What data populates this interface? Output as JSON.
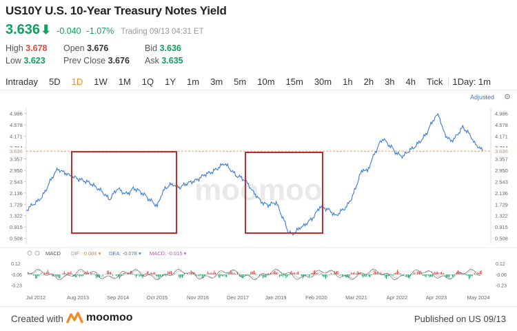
{
  "header": {
    "title": "US10Y U.S. 10-Year Treasury Notes Yield",
    "price": "3.636",
    "change": "-0.040",
    "change_pct": "-1.07%",
    "status": "Trading",
    "timestamp": "09/13 04:31 ET"
  },
  "stats": {
    "high_label": "High",
    "high": "3.678",
    "low_label": "Low",
    "low": "3.623",
    "open_label": "Open",
    "open": "3.676",
    "prev_close_label": "Prev Close",
    "prev_close": "3.676",
    "bid_label": "Bid",
    "bid": "3.636",
    "ask_label": "Ask",
    "ask": "3.635"
  },
  "tabs": [
    "Intraday",
    "5D",
    "1D",
    "1W",
    "1M",
    "1Q",
    "1Y",
    "1m",
    "3m",
    "5m",
    "10m",
    "15m",
    "30m",
    "1h",
    "2h",
    "3h",
    "4h",
    "Tick",
    "1Day: 1m"
  ],
  "active_tab": "1D",
  "toolbar": {
    "adjusted": "Adjusted",
    "gear": "gear-icon"
  },
  "chart_data": {
    "type": "line",
    "y_ticks": [
      "4.986",
      "4.578",
      "4.171",
      "3.764",
      "3.357",
      "2.950",
      "2.543",
      "2.136",
      "1.729",
      "1.322",
      "0.915",
      "0.508"
    ],
    "current_value": "3.636",
    "x_labels": [
      "Jul 2012",
      "Aug 2013",
      "Sep 2014",
      "Oct 2015",
      "Nov 2016",
      "Dec 2017",
      "Jan 2019",
      "Feb 2020",
      "Mar 2021",
      "Apr 2022",
      "Apr 2023",
      "May 2024"
    ],
    "ylim": [
      0.3,
      5.2
    ],
    "series": [
      {
        "values": [
          1.5,
          1.65,
          1.75,
          1.85,
          2.0,
          2.25,
          2.55,
          2.8,
          3.0,
          2.9,
          2.85,
          2.75,
          2.7,
          2.65,
          2.6,
          2.55,
          2.5,
          2.4,
          2.3,
          2.2,
          2.05,
          1.9,
          2.1,
          2.3,
          2.2,
          2.1,
          2.15,
          2.3,
          2.25,
          2.15,
          2.05,
          1.9,
          1.8,
          1.65,
          2.05,
          2.3,
          2.4,
          2.45,
          2.35,
          2.35,
          2.45,
          2.5,
          2.55,
          2.6,
          2.7,
          2.8,
          2.85,
          2.9,
          3.0,
          3.1,
          3.2,
          3.05,
          2.9,
          2.75,
          2.7,
          2.6,
          2.45,
          2.2,
          2.05,
          1.85,
          1.75,
          1.7,
          1.75,
          1.8,
          1.45,
          1.15,
          0.75,
          0.65,
          0.75,
          0.9,
          0.95,
          1.1,
          1.2,
          1.4,
          1.65,
          1.6,
          1.55,
          1.45,
          1.3,
          1.45,
          1.55,
          1.7,
          1.95,
          2.3,
          2.75,
          3.0,
          2.9,
          3.3,
          3.6,
          3.9,
          4.1,
          3.9,
          3.8,
          3.6,
          3.5,
          3.45,
          3.6,
          3.7,
          3.8,
          3.95,
          4.1,
          4.3,
          4.6,
          4.85,
          4.95,
          4.4,
          4.15,
          4.0,
          4.1,
          4.3,
          4.5,
          4.35,
          4.2,
          3.9,
          3.8,
          3.636
        ]
      }
    ]
  },
  "macd": {
    "label": "MACD",
    "dif_label": "DIF",
    "dif": "-0.086",
    "dea_label": "DEA",
    "dea": "-0.078",
    "macd_label": "MACD",
    "macd": "-0.015",
    "ticks": [
      "0.12",
      "-0.06",
      "-0.23"
    ],
    "colors": {
      "up": "#e0463a",
      "down": "#11a05a",
      "dif": "#e08a2a",
      "dea": "#3a7bd5",
      "macd": "#c050c0"
    }
  },
  "watermark": "moomoo",
  "footer": {
    "created": "Created with",
    "logo_text": "moomoo",
    "published": "Published on US 09/13"
  },
  "colors": {
    "line": "#3a7bd5",
    "up": "#e0463a",
    "down": "#11a05a",
    "accent": "#f08a24",
    "box": "#c8272d",
    "current": "#f08a24"
  }
}
